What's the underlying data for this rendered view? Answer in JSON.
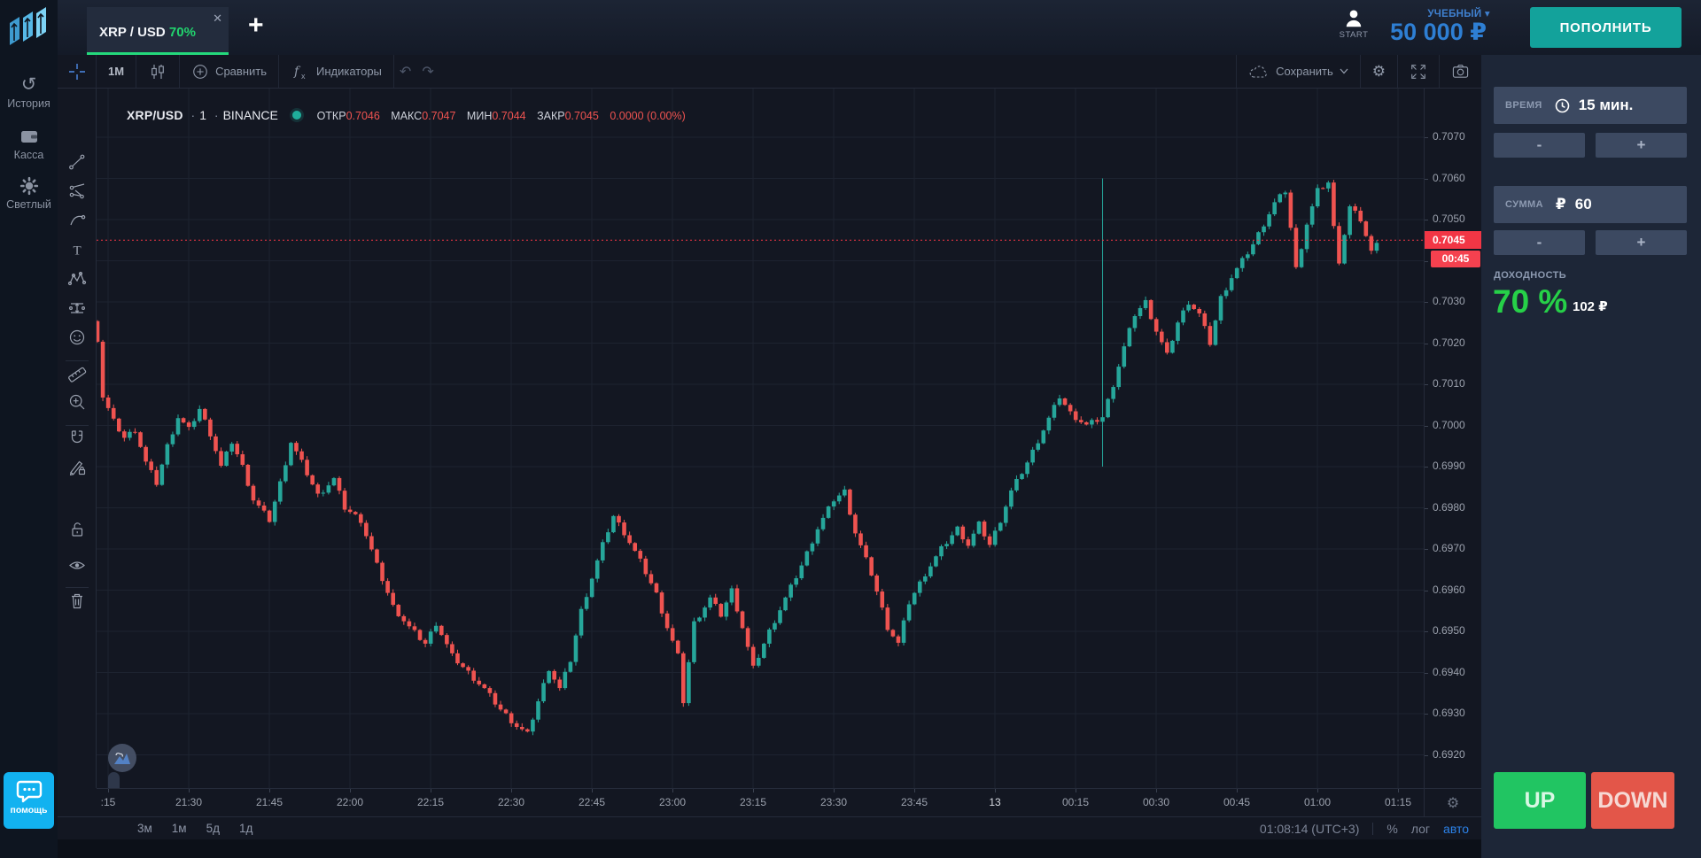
{
  "topbar": {
    "tab": {
      "symbol": "XRP / USD",
      "payout": "70%",
      "close_icon": "✕"
    },
    "add_icon": "+",
    "start_label": "START",
    "account_type": "УЧЕБНЫЙ",
    "account_caret": "▾",
    "balance": "50 000 ₽",
    "deposit_label": "ПОПОЛНИТЬ"
  },
  "sidebar": {
    "items": [
      {
        "label": "История"
      },
      {
        "label": "Касса"
      },
      {
        "label": "Светлый"
      }
    ],
    "help_label": "помощь"
  },
  "chart_toolbar": {
    "interval": "1M",
    "compare": "Сравнить",
    "indicators": "Индикаторы",
    "undo_icon": "↶",
    "redo_icon": "↷",
    "save": "Сохранить",
    "gear_icon": "⚙"
  },
  "legend": {
    "symbol": "XRP/USD",
    "sep": "·",
    "interval": "1",
    "exchange": "BINANCE",
    "o_label": "ОТКР",
    "o": "0.7046",
    "h_label": "МАКС",
    "h": "0.7047",
    "l_label": "МИН",
    "l": "0.7044",
    "c_label": "ЗАКР",
    "c": "0.7045",
    "change": "0.0000 (0.00%)"
  },
  "panel": {
    "time_label": "ВРЕМЯ",
    "time_value": "15 мин.",
    "amount_label": "СУММА",
    "currency": "₽",
    "amount_value": "60",
    "minus": "-",
    "plus": "+",
    "payout_label": "ДОХОДНОСТЬ",
    "payout_pct": "70 %",
    "payout_amount": "102 ₽",
    "up_label": "UP",
    "down_label": "DOWN"
  },
  "bottom": {
    "ranges": [
      "3м",
      "1м",
      "5д",
      "1д"
    ],
    "clock": "01:08:14 (UTC+3)",
    "percent": "%",
    "log": "лог",
    "auto": "авто",
    "collapse_icon": "‹"
  },
  "chart_data": {
    "type": "candlestick",
    "symbol": "XRP/USD",
    "exchange": "BINANCE",
    "interval_minutes": 1,
    "ohlc_legend": {
      "open": 0.7046,
      "high": 0.7047,
      "low": 0.7044,
      "close": 0.7045,
      "change": "0.0000 (0.00%)"
    },
    "current_price": "0.7045",
    "countdown": "00:45",
    "price_min": 0.692,
    "price_max": 0.707,
    "y_ticks": [
      "0.7070",
      "0.7060",
      "0.7050",
      "0.7040",
      "0.7030",
      "0.7020",
      "0.7010",
      "0.7000",
      "0.6990",
      "0.6980",
      "0.6970",
      "0.6960",
      "0.6950",
      "0.6940",
      "0.6930",
      "0.6920"
    ],
    "x_ticks": [
      ":15",
      "21:30",
      "21:45",
      "22:00",
      "22:15",
      "22:30",
      "22:45",
      "23:00",
      "23:15",
      "23:30",
      "23:45",
      "13",
      "00:15",
      "00:30",
      "00:45",
      "01:00",
      "01:15"
    ],
    "date_tick": "13",
    "grid": true,
    "colors": {
      "up": "#26a69a",
      "down": "#ef5350",
      "price_line": "#f23645"
    },
    "candles_count": 239,
    "anchors": [
      [
        0,
        0.7021
      ],
      [
        1,
        0.7007
      ],
      [
        3,
        0.7001
      ],
      [
        5,
        0.6997
      ],
      [
        7,
        0.6999
      ],
      [
        9,
        0.6991
      ],
      [
        11,
        0.6986
      ],
      [
        13,
        0.6995
      ],
      [
        15,
        0.7002
      ],
      [
        17,
        0.6999
      ],
      [
        19,
        0.7004
      ],
      [
        21,
        0.6998
      ],
      [
        23,
        0.699
      ],
      [
        25,
        0.6996
      ],
      [
        27,
        0.699
      ],
      [
        29,
        0.6982
      ],
      [
        32,
        0.6977
      ],
      [
        34,
        0.6986
      ],
      [
        36,
        0.6996
      ],
      [
        38,
        0.6991
      ],
      [
        41,
        0.6983
      ],
      [
        44,
        0.6987
      ],
      [
        46,
        0.698
      ],
      [
        49,
        0.6977
      ],
      [
        52,
        0.6966
      ],
      [
        55,
        0.6956
      ],
      [
        58,
        0.6951
      ],
      [
        61,
        0.6947
      ],
      [
        63,
        0.6952
      ],
      [
        66,
        0.6944
      ],
      [
        69,
        0.694
      ],
      [
        72,
        0.6936
      ],
      [
        75,
        0.6931
      ],
      [
        78,
        0.6927
      ],
      [
        80,
        0.6925
      ],
      [
        82,
        0.6933
      ],
      [
        84,
        0.6941
      ],
      [
        86,
        0.6936
      ],
      [
        88,
        0.6943
      ],
      [
        90,
        0.6955
      ],
      [
        92,
        0.6963
      ],
      [
        94,
        0.6971
      ],
      [
        96,
        0.6978
      ],
      [
        98,
        0.6974
      ],
      [
        101,
        0.6967
      ],
      [
        104,
        0.6959
      ],
      [
        106,
        0.6951
      ],
      [
        108,
        0.6944
      ],
      [
        109,
        0.6933
      ],
      [
        111,
        0.6952
      ],
      [
        114,
        0.6958
      ],
      [
        116,
        0.6954
      ],
      [
        118,
        0.696
      ],
      [
        120,
        0.6951
      ],
      [
        122,
        0.6941
      ],
      [
        125,
        0.695
      ],
      [
        128,
        0.6958
      ],
      [
        131,
        0.6966
      ],
      [
        134,
        0.6975
      ],
      [
        137,
        0.6982
      ],
      [
        139,
        0.6984
      ],
      [
        141,
        0.6974
      ],
      [
        144,
        0.6964
      ],
      [
        147,
        0.6951
      ],
      [
        149,
        0.6947
      ],
      [
        151,
        0.6957
      ],
      [
        154,
        0.6964
      ],
      [
        157,
        0.697
      ],
      [
        160,
        0.6975
      ],
      [
        162,
        0.6971
      ],
      [
        164,
        0.6976
      ],
      [
        166,
        0.6971
      ],
      [
        168,
        0.6977
      ],
      [
        170,
        0.6984
      ],
      [
        173,
        0.6991
      ],
      [
        176,
        0.6999
      ],
      [
        179,
        0.7007
      ],
      [
        181,
        0.7003
      ],
      [
        184,
        0.7
      ],
      [
        187,
        0.7002
      ],
      [
        189,
        0.701
      ],
      [
        191,
        0.7019
      ],
      [
        193,
        0.7027
      ],
      [
        195,
        0.703
      ],
      [
        197,
        0.7023
      ],
      [
        199,
        0.7017
      ],
      [
        201,
        0.7025
      ],
      [
        203,
        0.703
      ],
      [
        205,
        0.7027
      ],
      [
        207,
        0.702
      ],
      [
        209,
        0.7031
      ],
      [
        211,
        0.7036
      ],
      [
        213,
        0.704
      ],
      [
        215,
        0.7044
      ],
      [
        217,
        0.7049
      ],
      [
        219,
        0.7054
      ],
      [
        221,
        0.7057
      ],
      [
        222,
        0.7048
      ],
      [
        223,
        0.7038
      ],
      [
        225,
        0.7049
      ],
      [
        227,
        0.7057
      ],
      [
        229,
        0.7059
      ],
      [
        230,
        0.7048
      ],
      [
        231,
        0.704
      ],
      [
        233,
        0.7053
      ],
      [
        235,
        0.705
      ],
      [
        237,
        0.7042
      ],
      [
        238,
        0.7045
      ]
    ],
    "spike": {
      "index": 187,
      "high": 0.706,
      "low": 0.699
    }
  }
}
